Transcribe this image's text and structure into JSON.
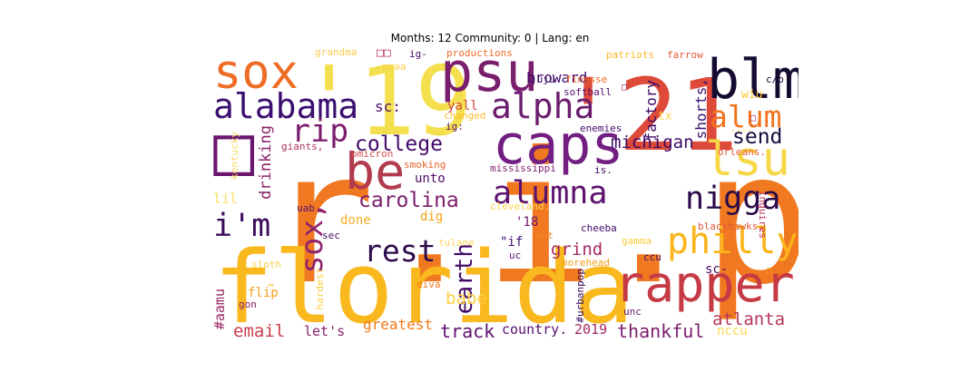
{
  "title": "Months: 12 Community: 0 | Lang: en",
  "words": [
    {
      "text": "r.i.p",
      "color": "#f07820"
    },
    {
      "text": "florida",
      "color": "#f9b81e"
    },
    {
      "text": "'21",
      "color": "#de4a3a"
    },
    {
      "text": "'19",
      "color": "#f4e04e"
    },
    {
      "text": "caps",
      "color": "#721f81"
    },
    {
      "text": "blm",
      "color": "#150b30"
    },
    {
      "text": "psu",
      "color": "#7a1f6d"
    },
    {
      "text": "sox",
      "color": "#ee6c24"
    },
    {
      "text": "be",
      "color": "#b23a4e"
    },
    {
      "text": "rapper",
      "color": "#c53a45"
    },
    {
      "text": "lsu",
      "color": "#f6d746"
    },
    {
      "text": "philly",
      "color": "#fbb41a"
    },
    {
      "text": "alabama",
      "color": "#3b0f70"
    },
    {
      "text": "alpha",
      "color": "#6b1d6e"
    },
    {
      "text": "alumna",
      "color": "#5c126e"
    },
    {
      "text": "nigga",
      "color": "#2c0b4a"
    },
    {
      "text": "alum",
      "color": "#f2731d"
    },
    {
      "text": "□",
      "color": "#6a176e"
    },
    {
      "text": "rip",
      "color": "#7c1d6d"
    },
    {
      "text": "i'm",
      "color": "#3a0c5a"
    },
    {
      "text": "sox,",
      "color": "#8e2469"
    },
    {
      "text": "rest",
      "color": "#2c0a4b"
    },
    {
      "text": "earth",
      "color": "#420a68"
    },
    {
      "text": "college",
      "color": "#41096a"
    },
    {
      "text": "carolina",
      "color": "#7c1d6d"
    },
    {
      "text": "michigan",
      "color": "#3d0965"
    },
    {
      "text": "send",
      "color": "#1b0c41"
    },
    {
      "text": "track",
      "color": "#5e126e"
    },
    {
      "text": "thankful",
      "color": "#7c1d6d"
    },
    {
      "text": "atlanta",
      "color": "#b73558"
    },
    {
      "text": "grind",
      "color": "#a22b62"
    },
    {
      "text": "email",
      "color": "#c73e4c"
    },
    {
      "text": "babe",
      "color": "#fcd046"
    },
    {
      "text": "greatest",
      "color": "#f37818"
    },
    {
      "text": "drinking",
      "color": "#8c2369"
    },
    {
      "text": "factory",
      "color": "#3d0965"
    },
    {
      "text": "shorts,",
      "color": "#3b0f70"
    },
    {
      "text": "broward",
      "color": "#420a68"
    },
    {
      "text": "country.",
      "color": "#58106e"
    },
    {
      "text": "2019",
      "color": "#a32a62"
    },
    {
      "text": "sc:",
      "color": "#56106e"
    },
    {
      "text": "let's",
      "color": "#8b2369"
    },
    {
      "text": "#aamu",
      "color": "#992762"
    },
    {
      "text": "yall",
      "color": "#d44842"
    },
    {
      "text": "lil",
      "color": "#f6e066"
    },
    {
      "text": "unto",
      "color": "#500d6c"
    },
    {
      "text": "nccu",
      "color": "#fbd94e"
    },
    {
      "text": "'18",
      "color": "#6a176e"
    },
    {
      "text": "dig",
      "color": "#f5a215"
    },
    {
      "text": "done",
      "color": "#f6ae25"
    },
    {
      "text": "\"if",
      "color": "#3b0f70"
    },
    {
      "text": "sc-",
      "color": "#420a68"
    },
    {
      "text": "wiu",
      "color": "#fbc52a"
    },
    {
      "text": "tx",
      "color": "#fcd046"
    },
    {
      "text": "flip",
      "color": "#f29f22"
    },
    {
      "text": "juju",
      "color": "#320a5e"
    },
    {
      "text": "finesse",
      "color": "#f06a2a"
    },
    {
      "text": "softball",
      "color": "#550f6d"
    },
    {
      "text": "changed",
      "color": "#fbbf2e"
    },
    {
      "text": "ig:",
      "color": "#63146e"
    },
    {
      "text": "enemies",
      "color": "#420a68"
    },
    {
      "text": "omicron",
      "color": "#d14b48"
    },
    {
      "text": "giants,",
      "color": "#b0335d"
    },
    {
      "text": "smoking",
      "color": "#e96430"
    },
    {
      "text": "mississippi",
      "color": "#7c1d6d"
    },
    {
      "text": "is.",
      "color": "#420a68"
    },
    {
      "text": "cleveland.",
      "color": "#fbd34a"
    },
    {
      "text": "orleans.",
      "color": "#e3583a"
    },
    {
      "text": "uab",
      "color": "#57106e"
    },
    {
      "text": "sec",
      "color": "#400a67"
    },
    {
      "text": "ent",
      "color": "#f48620"
    },
    {
      "text": "tulane",
      "color": "#fbd65a"
    },
    {
      "text": "cheeba",
      "color": "#400a67"
    },
    {
      "text": "gamma",
      "color": "#fbcc3c"
    },
    {
      "text": "ccu",
      "color": "#420a68"
    },
    {
      "text": "blackhawks,",
      "color": "#e3583a"
    },
    {
      "text": "morehead",
      "color": "#f6a01c"
    },
    {
      "text": "uc",
      "color": "#5e126e"
    },
    {
      "text": "sloth",
      "color": "#f7d44a"
    },
    {
      "text": "gon",
      "color": "#8a226a"
    },
    {
      "text": "™",
      "color": "#fbbe2a"
    },
    {
      "text": "diva",
      "color": "#f37818"
    },
    {
      "text": "unc",
      "color": "#6a176e"
    },
    {
      "text": "hardest",
      "color": "#fcd046"
    },
    {
      "text": "#urbanpop",
      "color": "#320a5e"
    },
    {
      "text": "inquires",
      "color": "#b73558"
    },
    {
      "text": "kentucky",
      "color": "#fbd86a"
    },
    {
      "text": "grandma",
      "color": "#fbcd4e"
    },
    {
      "text": "□□",
      "color": "#b73558"
    },
    {
      "text": "ig-",
      "color": "#420a68"
    },
    {
      "text": "ncaa",
      "color": "#fcd046"
    },
    {
      "text": "productions",
      "color": "#f06a2a"
    },
    {
      "text": "patriots",
      "color": "#f9ba26"
    },
    {
      "text": "farrow",
      "color": "#e3583a"
    },
    {
      "text": "c/o",
      "color": "#1b0c41"
    },
    {
      "text": "□",
      "color": "#f29f22"
    },
    {
      "text": "□",
      "color": "#a42c60"
    },
    {
      "text": "----",
      "color": "#f6b030"
    },
    {
      "text": "□",
      "color": "#8c2369"
    }
  ]
}
